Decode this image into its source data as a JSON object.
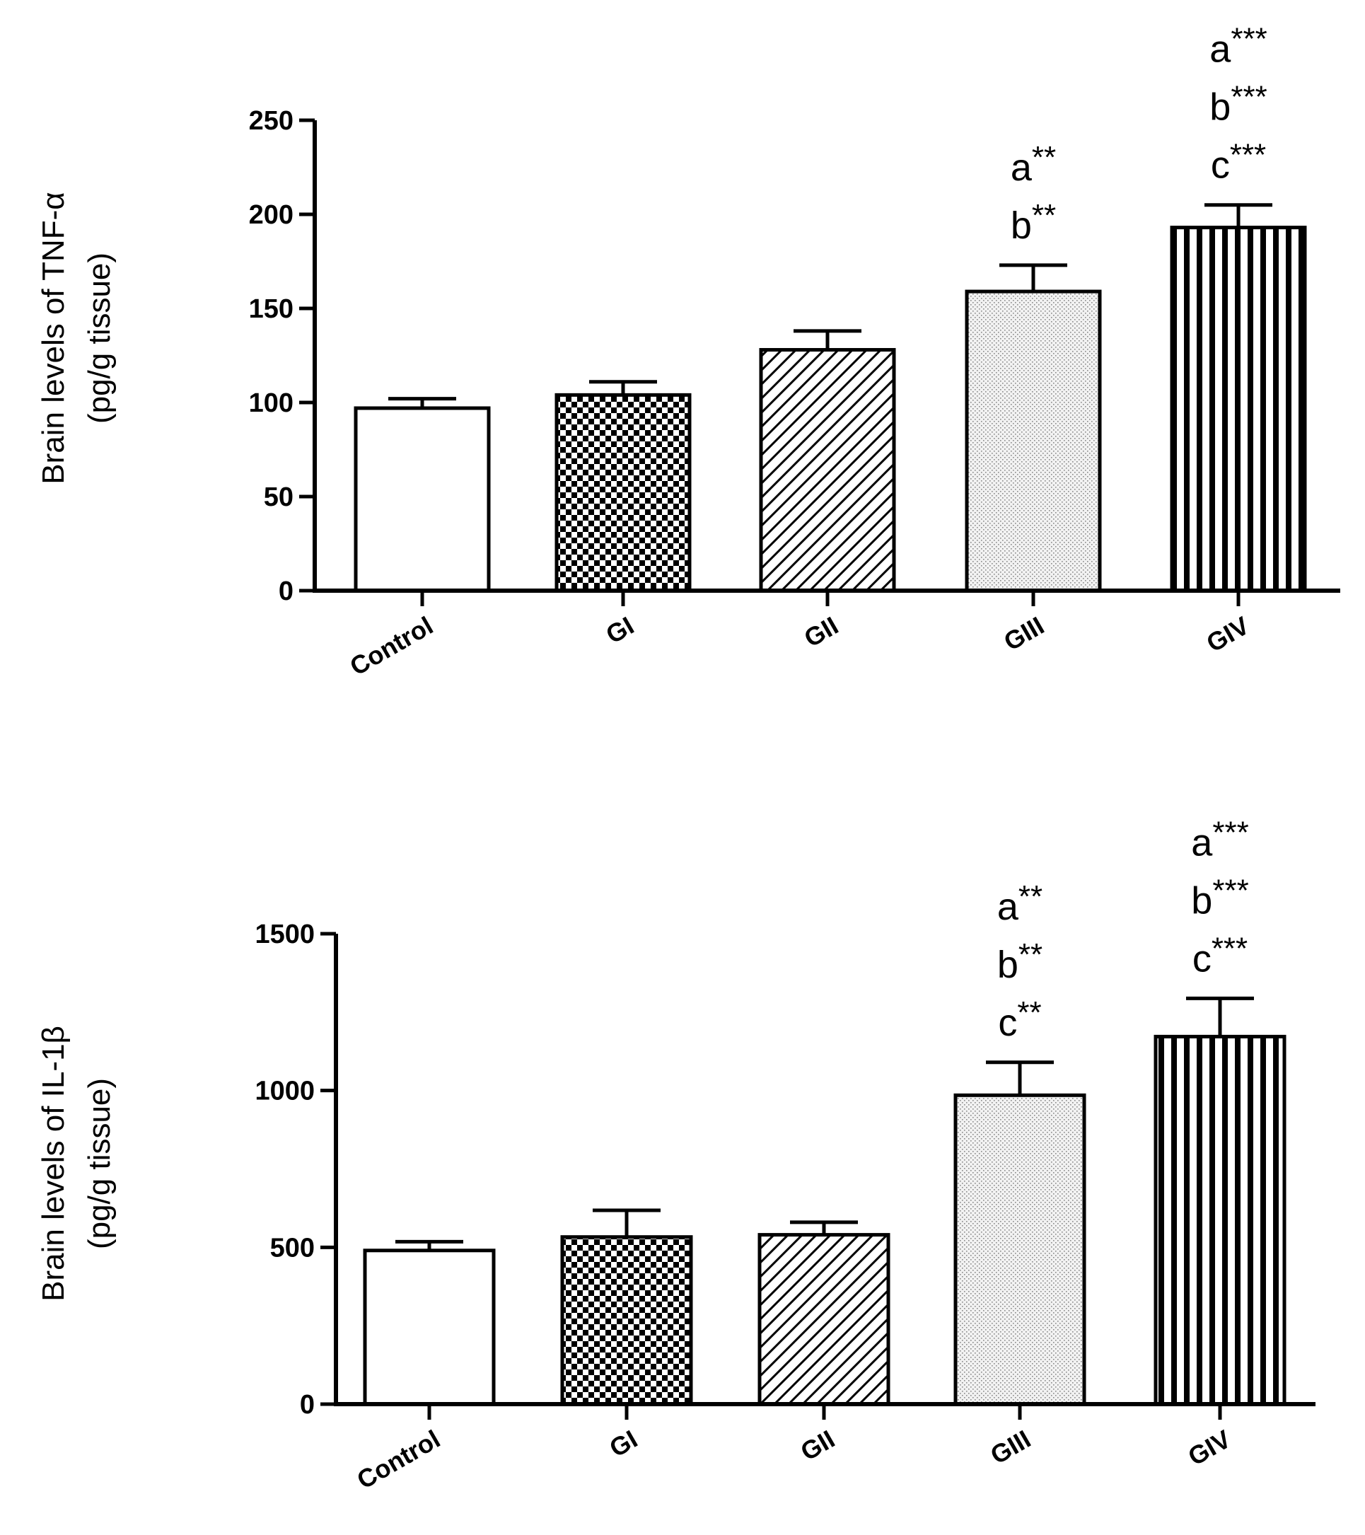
{
  "chart_data": [
    {
      "type": "bar",
      "categories": [
        "Control",
        "GI",
        "GII",
        "GIII",
        "GIV"
      ],
      "values": [
        97,
        104,
        128,
        159,
        193
      ],
      "errors": [
        5,
        7,
        10,
        14,
        12
      ],
      "title": "",
      "xlabel": "",
      "ylabel": [
        "Brain levels of TNF-α",
        "(pg/g tissue)"
      ],
      "ylim": [
        0,
        250
      ],
      "yticks": [
        0,
        50,
        100,
        150,
        200,
        250
      ],
      "grid": false,
      "bar_fills": [
        "white",
        "checker",
        "diagonal",
        "dots",
        "vertical"
      ],
      "annotations": [
        [],
        [],
        [],
        [
          {
            "letter": "a",
            "stars": "**"
          },
          {
            "letter": "b",
            "stars": "**"
          }
        ],
        [
          {
            "letter": "a",
            "stars": "***"
          },
          {
            "letter": "b",
            "stars": "***"
          },
          {
            "letter": "c",
            "stars": "***"
          }
        ]
      ]
    },
    {
      "type": "bar",
      "categories": [
        "Control",
        "GI",
        "GII",
        "GIII",
        "GIV"
      ],
      "values": [
        490,
        533,
        540,
        985,
        1172
      ],
      "errors": [
        28,
        85,
        40,
        105,
        122
      ],
      "title": "",
      "xlabel": "",
      "ylabel": [
        "Brain levels of IL-1β",
        "(pg/g tissue)"
      ],
      "ylim": [
        0,
        1500
      ],
      "yticks": [
        0,
        500,
        1000,
        1500
      ],
      "grid": false,
      "bar_fills": [
        "white",
        "checker",
        "diagonal",
        "dots",
        "vertical"
      ],
      "annotations": [
        [],
        [],
        [],
        [
          {
            "letter": "a",
            "stars": "**"
          },
          {
            "letter": "b",
            "stars": "**"
          },
          {
            "letter": "c",
            "stars": "**"
          }
        ],
        [
          {
            "letter": "a",
            "stars": "***"
          },
          {
            "letter": "b",
            "stars": "***"
          },
          {
            "letter": "c",
            "stars": "***"
          }
        ]
      ]
    }
  ]
}
